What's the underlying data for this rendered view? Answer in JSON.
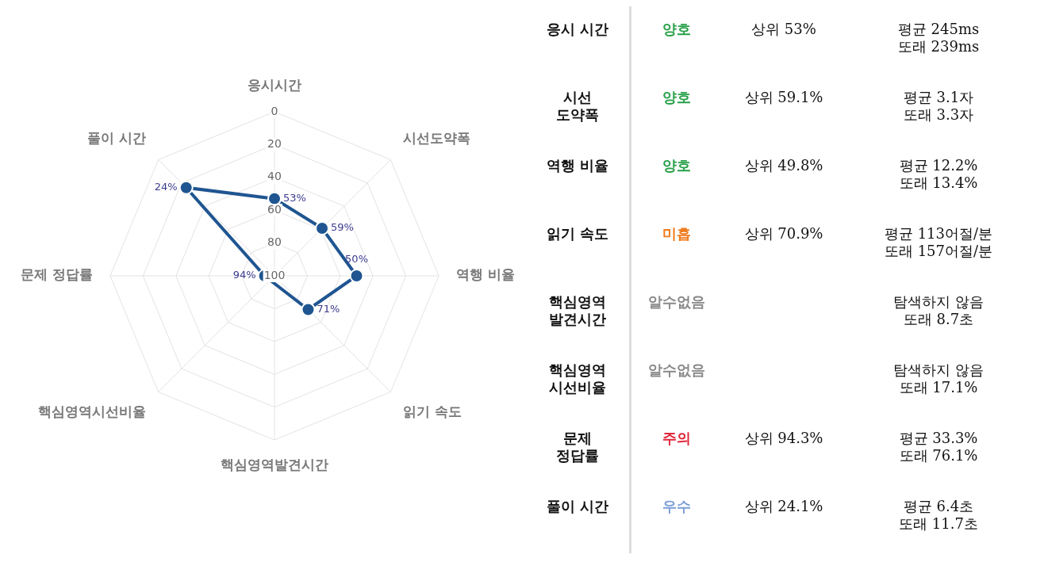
{
  "chart_data": [
    {
      "type": "radar",
      "categories": [
        "응시시간",
        "시선도약폭",
        "역행 비율",
        "읽기 속도",
        "핵심영역발견시간",
        "핵심영역시선비율",
        "문제 정답률",
        "풀이 시간"
      ],
      "series": [
        {
          "color": "#1f5591",
          "values": [
            53,
            59,
            50,
            71,
            null,
            null,
            94,
            24
          ],
          "value_labels": [
            "53%",
            "59%",
            "50%",
            "71%",
            null,
            null,
            "94%",
            "24%"
          ]
        }
      ],
      "ylim": [
        100,
        0
      ],
      "yticks": [
        0,
        20,
        40,
        60,
        80,
        100
      ],
      "grid": true,
      "legend": false,
      "marker": "circle"
    },
    {
      "type": "other",
      "annotations": [
        "응시 시간",
        "양호",
        "상위 53%",
        "평균 245ms\n또래 239ms",
        "시선\n도약폭",
        "양호",
        "상위 59.1%",
        "평균 3.1자\n또래 3.3자",
        "역행 비율",
        "양호",
        "상위 49.8%",
        "평균 12.2%\n또래 13.4%",
        "읽기 속도",
        "미흡",
        "상위 70.9%",
        "평균 113어절/분\n또래 157어절/분",
        "핵심영역\n발견시간",
        "알수없음",
        null,
        "탐색하지 않음\n또래 8.7초",
        "핵심영역\n시선비율",
        "알수없음",
        null,
        "탐색하지 않음\n또래 17.1%",
        "문제\n정답률",
        "주의",
        "상위 94.3%",
        "평균 33.3%\n또래 76.1%",
        "풀이 시간",
        "우수",
        "상위 24.1%",
        "평균 6.4초\n또래 11.7초"
      ],
      "colors": [
        "#2aa14a",
        "#2aa14a",
        "#2aa14a",
        "#f07b1d",
        "#8a8a8a",
        "#8a8a8a",
        "#e0283c",
        "#7c9fd8"
      ]
    }
  ]
}
